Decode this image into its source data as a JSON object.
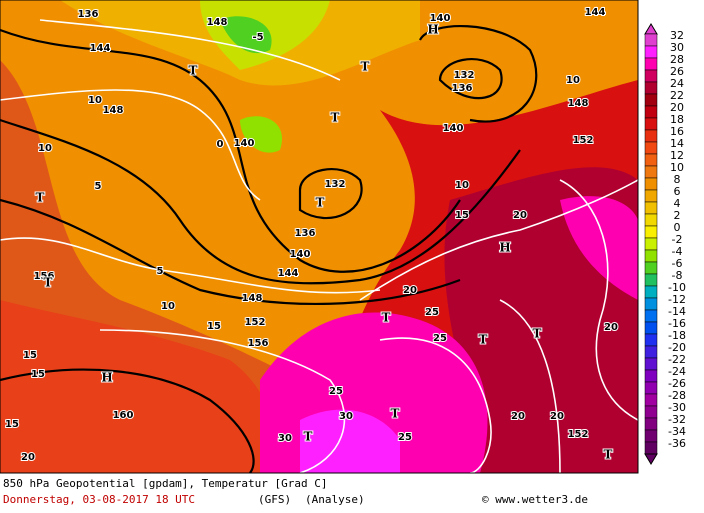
{
  "map": {
    "labels": [
      "144",
      "140",
      "148",
      "136",
      "144",
      "136",
      "132",
      "140",
      "148",
      "152",
      "10",
      "10",
      "15",
      "20",
      "132",
      "136",
      "140",
      "144",
      "148",
      "152",
      "156",
      "160",
      "156",
      "10",
      "15",
      "15",
      "15",
      "15",
      "20",
      "20",
      "25",
      "25",
      "25",
      "30",
      "30",
      "25",
      "20",
      "20",
      "20",
      "152",
      "5",
      "5",
      "0",
      "-5",
      "10",
      "10",
      "148",
      "140",
      "H",
      "H",
      "H",
      "T",
      "T",
      "T",
      "T",
      "T",
      "T",
      "T",
      "T",
      "T",
      "T",
      "T",
      "T"
    ]
  },
  "legend": {
    "values": [
      32,
      30,
      28,
      26,
      24,
      22,
      20,
      18,
      16,
      14,
      12,
      10,
      8,
      6,
      4,
      2,
      0,
      -2,
      -4,
      -6,
      -8,
      -10,
      -12,
      -14,
      -16,
      -18,
      -20,
      -22,
      -24,
      -26,
      -28,
      -30,
      -32,
      -34,
      -36
    ],
    "colors": [
      "#e040d0",
      "#ff20ff",
      "#ff00b0",
      "#d00060",
      "#b00030",
      "#a00010",
      "#c00010",
      "#d81010",
      "#e83010",
      "#f04810",
      "#f06010",
      "#f07810",
      "#f09000",
      "#f0a800",
      "#f0c000",
      "#f0d800",
      "#f8f000",
      "#c8f000",
      "#90e000",
      "#50d020",
      "#20c060",
      "#00b0c0",
      "#0090e0",
      "#0070f0",
      "#0050f0",
      "#2030f0",
      "#4020e0",
      "#6010d0",
      "#8000c0",
      "#9000b0",
      "#a000a0",
      "#900090",
      "#800080",
      "#700070",
      "#600060"
    ]
  },
  "caption": {
    "line1": "850 hPa Geopotential [gpdam], Temperatur [Grad C]",
    "date": "Donnerstag, 03-08-2017  18 UTC",
    "model": "(GFS)",
    "run": "(Analyse)",
    "source": "© www.wetter3.de"
  }
}
